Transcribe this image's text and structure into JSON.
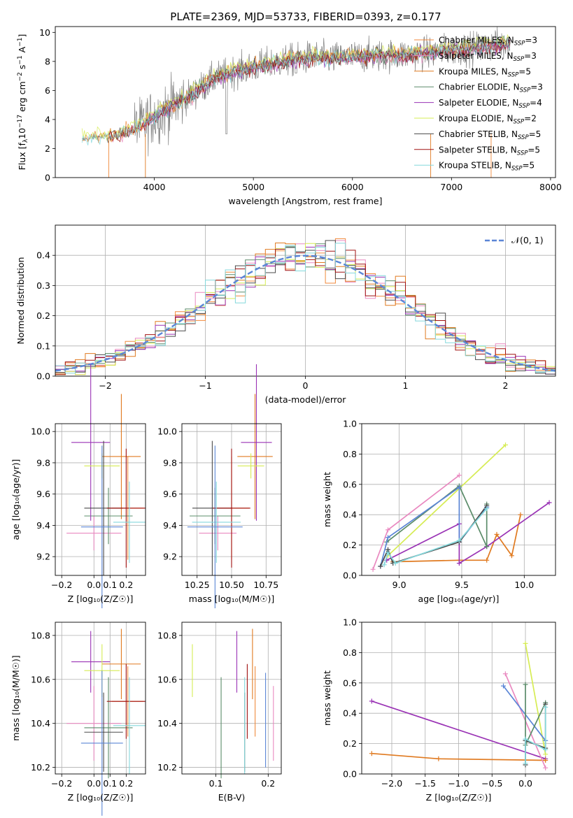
{
  "figure_title": "PLATE=2369, MJD=53733, FIBERID=0393, z=0.177",
  "colors": {
    "Chabrier MILES": "#f08a3c",
    "Salpeter MILES": "#e989c0",
    "Kroupa MILES": "#e07a20",
    "Chabrier ELODIE": "#5b8c6a",
    "Salpeter ELODIE": "#9a33b5",
    "Kroupa ELODIE": "#d6ec54",
    "Chabrier STELIB": "#4a4a4a",
    "Salpeter STELIB": "#a01010",
    "Kroupa STELIB": "#84d8dc",
    "blue": "#5b86d6",
    "data": "#808080"
  },
  "chart_data": [
    {
      "type": "line",
      "title": "PLATE=2369, MJD=53733, FIBERID=0393, z=0.177",
      "xlabel": "wavelength [Angstrom, rest frame]",
      "ylabel": "Flux [f_λ 10^-17 erg cm^-2 s^-1 A^-1]",
      "xlim": [
        3000,
        8050
      ],
      "ylim": [
        0,
        10.4
      ],
      "xticks": [
        "4000",
        "5000",
        "6000",
        "7000",
        "8000"
      ],
      "yticks": [
        "0",
        "2",
        "4",
        "6",
        "8",
        "10"
      ],
      "legend": [
        "Chabrier MILES, N_SSP=3",
        "Salpeter MILES, N_SSP=3",
        "Kroupa MILES, N_SSP=5",
        "Chabrier ELODIE, N_SSP=3",
        "Salpeter ELODIE, N_SSP=4",
        "Kroupa ELODIE, N_SSP=2",
        "Chabrier STELIB, N_SSP=5",
        "Salpeter STELIB, N_SSP=5",
        "Kroupa STELIB, N_SSP=5"
      ],
      "legend_position": "right",
      "continuum": {
        "x": [
          3270,
          3400,
          3600,
          3800,
          4000,
          4200,
          4400,
          4600,
          4800,
          5000,
          5200,
          5400,
          5600,
          5800,
          6000,
          6200,
          6400,
          6600,
          6800,
          7000,
          7200,
          7400,
          7600
        ],
        "y": [
          2.6,
          2.8,
          2.8,
          3.3,
          4.2,
          5.0,
          5.8,
          6.8,
          7.3,
          7.6,
          7.9,
          8.1,
          8.3,
          8.2,
          8.3,
          8.4,
          8.4,
          8.5,
          8.6,
          8.8,
          8.9,
          9.1,
          9.3
        ]
      }
    },
    {
      "type": "line",
      "xlabel": "(data-model)/error",
      "ylabel": "Normed distribution",
      "xlim": [
        -2.5,
        2.5
      ],
      "ylim": [
        0,
        0.5
      ],
      "grid": true,
      "xticks": [
        "−2",
        "−1",
        "0",
        "1",
        "2"
      ],
      "yticks": [
        "0.0",
        "0.1",
        "0.2",
        "0.3",
        "0.4"
      ],
      "legend": [
        "𝒩(0, 1)"
      ],
      "legend_position": "top-right"
    },
    {
      "type": "scatter",
      "xlabel": "Z [log₁₀(Z/Z☉)]",
      "ylabel": "age  [log₁₀(age/yr)]",
      "xlim": [
        -0.24,
        0.32
      ],
      "ylim": [
        9.08,
        10.05
      ],
      "grid": true,
      "xticks": [
        "−0.2",
        "0.0",
        "0.1",
        "0.2"
      ],
      "yticks": [
        "9.2",
        "9.4",
        "9.6",
        "9.8",
        "10.0"
      ]
    },
    {
      "type": "scatter",
      "xlabel": "mass [log₁₀(M/M☉)]",
      "xlim": [
        10.14,
        10.86
      ],
      "ylim": [
        9.08,
        10.05
      ],
      "grid": true,
      "xticks": [
        "10.25",
        "10.50",
        "10.75"
      ],
      "yticks": [
        "9.2",
        "9.4",
        "9.6",
        "9.8",
        "10.0"
      ]
    },
    {
      "type": "line",
      "xlabel": "age  [log₁₀(age/yr)]",
      "ylabel": "mass weight",
      "xlim": [
        8.7,
        10.25
      ],
      "ylim": [
        0,
        1
      ],
      "grid": true,
      "xticks": [
        "9.0",
        "9.5",
        "10.0"
      ],
      "yticks": [
        "0.0",
        "0.2",
        "0.4",
        "0.6",
        "0.8",
        "1.0"
      ]
    },
    {
      "type": "scatter",
      "xlabel": "Z [log₁₀(Z/Z☉)]",
      "ylabel": "mass [log₁₀(M/M☉)]",
      "xlim": [
        -0.24,
        0.32
      ],
      "ylim": [
        10.17,
        10.86
      ],
      "grid": true,
      "xticks": [
        "−0.2",
        "0.0",
        "0.1",
        "0.2"
      ],
      "yticks": [
        "10.2",
        "10.4",
        "10.6",
        "10.8"
      ]
    },
    {
      "type": "scatter",
      "xlabel": "E(B-V)",
      "xlim": [
        0.035,
        0.225
      ],
      "ylim": [
        10.17,
        10.86
      ],
      "grid": true,
      "xticks": [
        "0.1",
        "0.2"
      ],
      "yticks": [
        "10.2",
        "10.4",
        "10.6",
        "10.8"
      ]
    },
    {
      "type": "line",
      "xlabel": "Z [log₁₀(Z/Z☉)]",
      "ylabel": "mass weight",
      "xlim": [
        -2.45,
        0.45
      ],
      "ylim": [
        0,
        1
      ],
      "grid": true,
      "xticks": [
        "−2.0",
        "−1.5",
        "−1.0",
        "−0.5",
        "0.0"
      ],
      "yticks": [
        "0.0",
        "0.2",
        "0.4",
        "0.6",
        "0.8",
        "1.0"
      ]
    }
  ]
}
